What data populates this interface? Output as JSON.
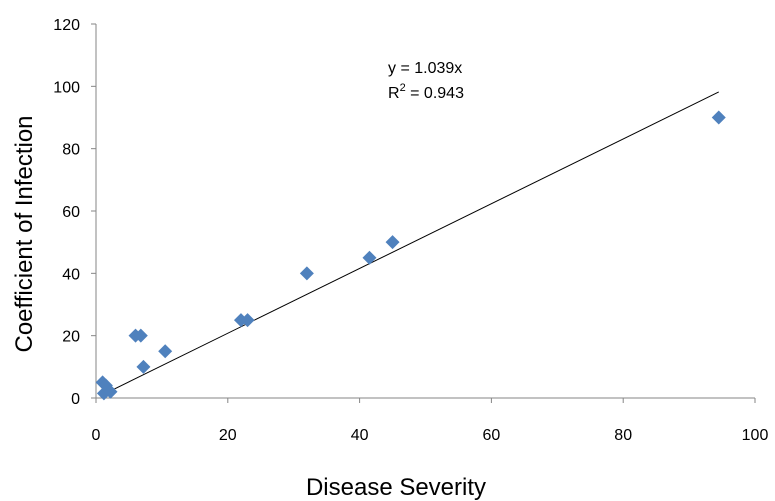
{
  "chart_data": {
    "type": "scatter",
    "xlabel": "Disease Severity",
    "ylabel": "Coefficient of Infection",
    "xlim": [
      0,
      100
    ],
    "ylim": [
      0,
      120
    ],
    "x_ticks": [
      "0",
      "20",
      "40",
      "60",
      "80",
      "100"
    ],
    "y_ticks": [
      "0",
      "20",
      "40",
      "60",
      "80",
      "100",
      "120"
    ],
    "y_tick_display": [
      "0",
      "20",
      "40",
      "60",
      "80",
      "100",
      "120"
    ],
    "grid": false,
    "marker_color": "#4F81BD",
    "marker_shape": "diamond",
    "points": [
      {
        "x": 1.0,
        "y": 5.0
      },
      {
        "x": 1.5,
        "y": 4.0
      },
      {
        "x": 1.2,
        "y": 1.5
      },
      {
        "x": 2.2,
        "y": 2.0
      },
      {
        "x": 6.0,
        "y": 20.0
      },
      {
        "x": 6.8,
        "y": 20.0
      },
      {
        "x": 7.2,
        "y": 10.0
      },
      {
        "x": 10.5,
        "y": 15.0
      },
      {
        "x": 22.0,
        "y": 25.0
      },
      {
        "x": 23.0,
        "y": 25.0
      },
      {
        "x": 32.0,
        "y": 40.0
      },
      {
        "x": 41.5,
        "y": 45.0
      },
      {
        "x": 45.0,
        "y": 50.0
      },
      {
        "x": 94.5,
        "y": 90.0
      }
    ],
    "trendline": {
      "slope": 1.039,
      "x_start": 1.0,
      "x_end": 94.5,
      "color": "#000000",
      "equation": "y = 1.039x",
      "r2_prefix": "R",
      "r2_sup": "2",
      "r2_value": " = 0.943"
    }
  }
}
